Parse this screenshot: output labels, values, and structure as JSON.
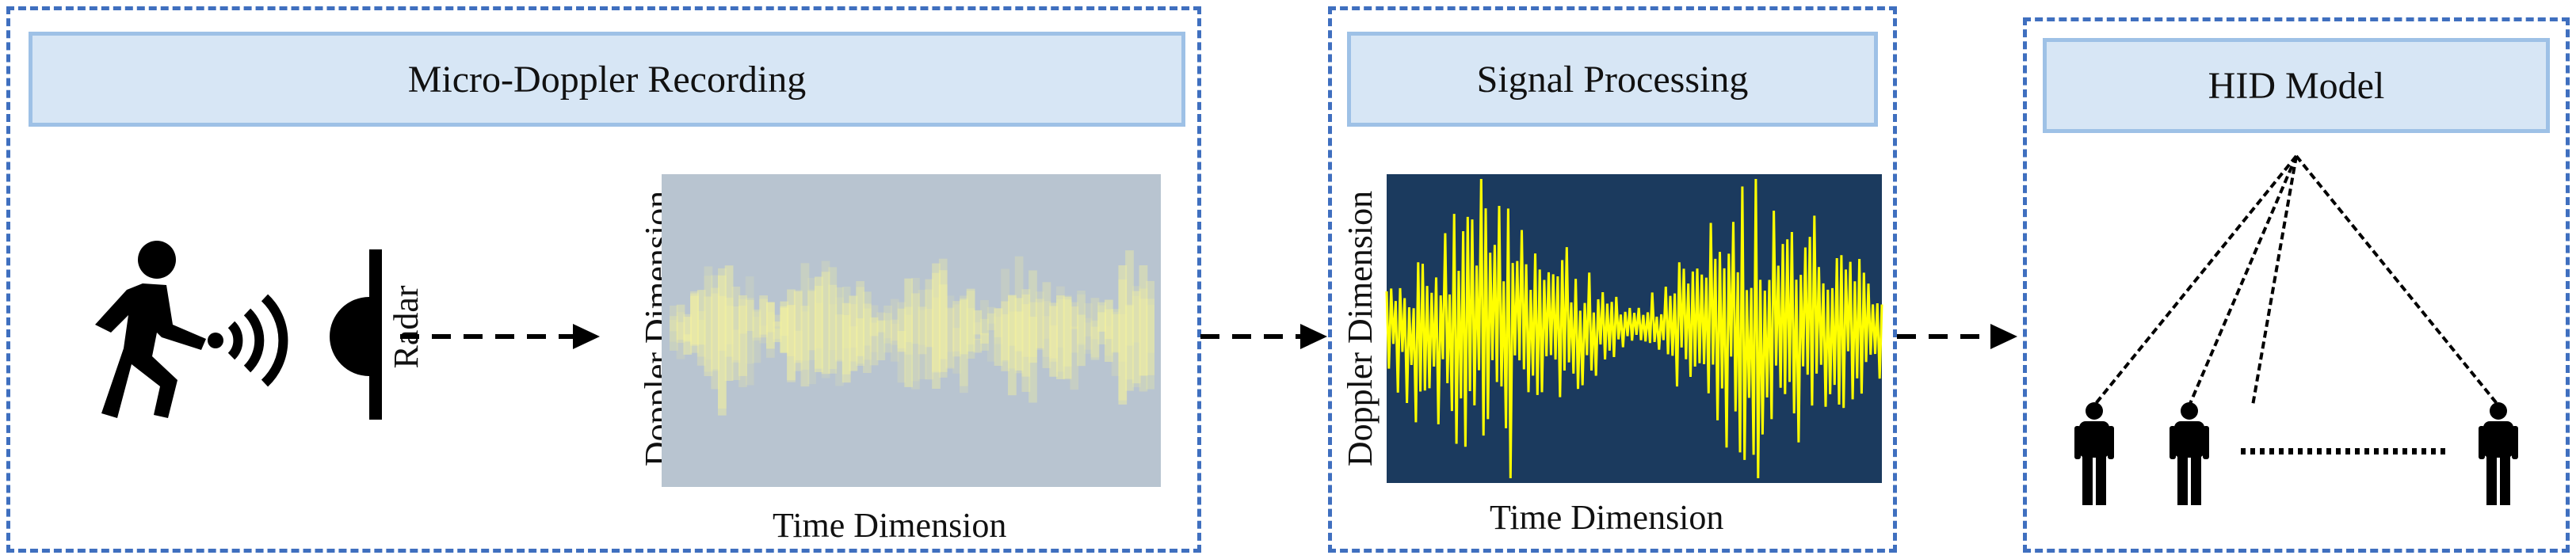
{
  "panels": {
    "recording": {
      "title": "Micro-Doppler Recording"
    },
    "processing": {
      "title": "Signal Processing"
    },
    "model": {
      "title": "HID Model"
    }
  },
  "radar_label": "Radar",
  "spectrogram": {
    "ylabel": "Doppler Dimension",
    "xlabel": "Time Dimension"
  },
  "signal": {
    "ylabel": "Doppler Dimension",
    "xlabel": "Time Dimension"
  },
  "colors": {
    "panel_border": "#3f6fbf",
    "header_fill": "#d7e6f5",
    "header_border": "#9ec1e6",
    "spectrogram_bg": "#b8c4d0",
    "spectrogram_signal": "#f2f0a0",
    "signal_bg": "#1b3a5e",
    "signal_line": "#ffff00"
  },
  "icons": [
    "walking-person-icon",
    "radio-waves-icon",
    "radar-dish-icon",
    "person-icon"
  ]
}
